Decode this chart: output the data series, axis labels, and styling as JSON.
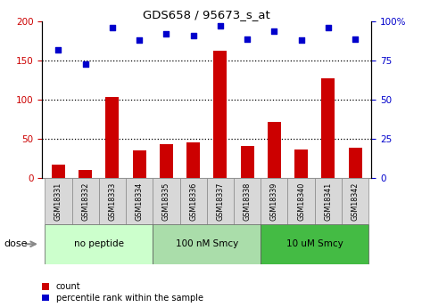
{
  "title": "GDS658 / 95673_s_at",
  "samples": [
    "GSM18331",
    "GSM18332",
    "GSM18333",
    "GSM18334",
    "GSM18335",
    "GSM18336",
    "GSM18337",
    "GSM18338",
    "GSM18339",
    "GSM18340",
    "GSM18341",
    "GSM18342"
  ],
  "counts": [
    17,
    10,
    104,
    35,
    43,
    46,
    163,
    41,
    72,
    36,
    127,
    39
  ],
  "percentiles": [
    82,
    73,
    96,
    88,
    92,
    91,
    97,
    89,
    94,
    88,
    96,
    89
  ],
  "bar_color": "#cc0000",
  "dot_color": "#0000cc",
  "ylim_left": [
    0,
    200
  ],
  "ylim_right": [
    0,
    100
  ],
  "yticks_left": [
    0,
    50,
    100,
    150,
    200
  ],
  "yticks_right": [
    0,
    25,
    50,
    75,
    100
  ],
  "yticklabels_right": [
    "0",
    "25",
    "50",
    "75",
    "100%"
  ],
  "groups": [
    {
      "label": "no peptide",
      "start": 0,
      "end": 3,
      "color": "#ccffcc"
    },
    {
      "label": "100 nM Smcy",
      "start": 4,
      "end": 7,
      "color": "#aaddaa"
    },
    {
      "label": "10 uM Smcy",
      "start": 8,
      "end": 11,
      "color": "#44bb44"
    }
  ],
  "dose_label": "dose",
  "legend_items": [
    {
      "label": "count",
      "color": "#cc0000"
    },
    {
      "label": "percentile rank within the sample",
      "color": "#0000cc"
    }
  ],
  "bg_color": "#ffffff",
  "plot_bg": "#ffffff",
  "bar_width": 0.5,
  "xlabel_bg": "#cccccc",
  "dotted_lines": [
    50,
    100,
    150
  ]
}
